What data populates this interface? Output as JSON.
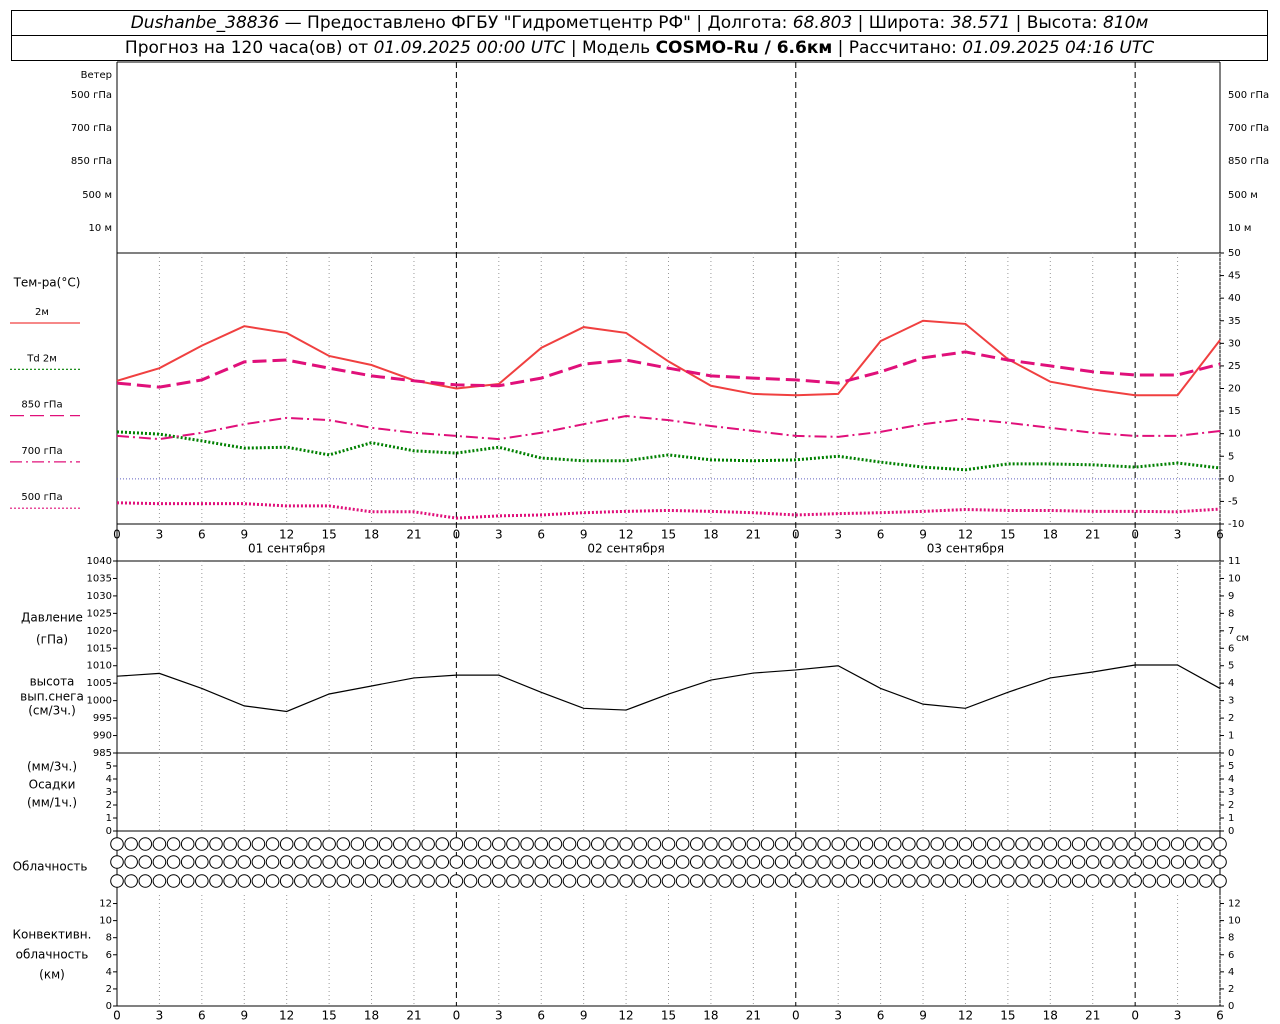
{
  "header": {
    "station": "Dushanbe_38836",
    "provider": "— Предоставлено ФГБУ \"Гидрометцентр РФ\"",
    "lon_label": "| Долгота:",
    "lon": "68.803",
    "lat_label": "| Широта:",
    "lat": "38.571",
    "alt_label": "| Высота:",
    "alt": "810м",
    "forecast_label": "Прогноз на 120 часа(ов) от",
    "forecast_time": "01.09.2025 00:00 UTC",
    "model_label": "| Модель",
    "model": "COSMO-Ru / 6.6км",
    "calc_label": "| Рассчитано:",
    "calc_time": "01.09.2025 04:16 UTC"
  },
  "chart_data": [
    {
      "type": "wind",
      "title": "Ветер",
      "levels": [
        "500 гПа",
        "700 гПа",
        "850 гПа",
        "500 м",
        "10 м"
      ]
    },
    {
      "type": "line",
      "title": "Тем-ра(°C)",
      "ytick_sides": [
        "right"
      ],
      "x": [
        0,
        3,
        6,
        9,
        12,
        15,
        18,
        21,
        24,
        27,
        30,
        33,
        36,
        39,
        42,
        45,
        48,
        51,
        54,
        57,
        60,
        63,
        66,
        69,
        72,
        75,
        78
      ],
      "xlim": [
        0,
        78
      ],
      "xticks": [
        0,
        3,
        6,
        9,
        12,
        15,
        18,
        21,
        {
          "value": 24,
          "label": "0"
        },
        {
          "value": 27,
          "label": "3"
        },
        {
          "value": 30,
          "label": "6"
        },
        {
          "value": 33,
          "label": "9"
        },
        {
          "value": 36,
          "label": "12"
        },
        {
          "value": 39,
          "label": "15"
        },
        {
          "value": 42,
          "label": "18"
        },
        {
          "value": 45,
          "label": "21"
        },
        {
          "value": 48,
          "label": "0"
        },
        {
          "value": 51,
          "label": "3"
        },
        {
          "value": 54,
          "label": "6"
        },
        {
          "value": 57,
          "label": "9"
        },
        {
          "value": 60,
          "label": "12"
        },
        {
          "value": 63,
          "label": "15"
        },
        {
          "value": 66,
          "label": "18"
        },
        {
          "value": 69,
          "label": "21"
        },
        {
          "value": 72,
          "label": "0"
        },
        {
          "value": 75,
          "label": "3"
        },
        {
          "value": 78,
          "label": "6"
        }
      ],
      "date_labels": [
        {
          "value": 12,
          "label": "01 сентября"
        },
        {
          "value": 36,
          "label": "02 сентября"
        },
        {
          "value": 60,
          "label": "03 сентября"
        }
      ],
      "ylim": [
        -10,
        50
      ],
      "yticks": [
        -10,
        -5,
        0,
        5,
        10,
        15,
        20,
        25,
        30,
        35,
        40,
        45,
        50
      ],
      "series": [
        {
          "name": "2м",
          "color": "#f04040",
          "style": "solid",
          "values": [
            21.7,
            24.5,
            29.5,
            33.8,
            32.3,
            27.2,
            25.2,
            21.8,
            20.0,
            21.0,
            29.0,
            33.6,
            32.3,
            26.0,
            20.6,
            18.8,
            18.5,
            18.8,
            30.5,
            35.0,
            34.3,
            26.5,
            21.5,
            19.8,
            18.5,
            18.5,
            30.7
          ]
        },
        {
          "name": "Td 2м",
          "color": "#008000",
          "style": "dotted",
          "values": [
            10.4,
            9.9,
            8.4,
            6.8,
            7.0,
            5.3,
            8.0,
            6.2,
            5.7,
            7.0,
            4.6,
            4.0,
            4.0,
            5.3,
            4.2,
            4.0,
            4.2,
            5.0,
            3.7,
            2.6,
            2.0,
            3.3,
            3.3,
            3.1,
            2.6,
            3.5,
            2.4
          ]
        },
        {
          "name": "850 гПа",
          "color": "#e0107a",
          "style": "dashed",
          "values": [
            21.2,
            20.3,
            21.9,
            25.9,
            26.3,
            24.5,
            22.8,
            21.7,
            20.8,
            20.6,
            22.3,
            25.4,
            26.3,
            24.5,
            22.8,
            22.3,
            21.9,
            21.2,
            23.7,
            26.8,
            28.1,
            26.3,
            25.0,
            23.7,
            23.0,
            23.0,
            25.4
          ]
        },
        {
          "name": "700 гПа",
          "color": "#e0107a",
          "style": "dashdot",
          "values": [
            9.5,
            8.8,
            10.2,
            12.1,
            13.5,
            13.0,
            11.3,
            10.2,
            9.5,
            8.8,
            10.2,
            12.1,
            13.9,
            13.0,
            11.7,
            10.6,
            9.5,
            9.3,
            10.4,
            12.1,
            13.3,
            12.4,
            11.3,
            10.2,
            9.5,
            9.5,
            10.6
          ]
        },
        {
          "name": "500 гПа",
          "color": "#e0107a",
          "style": "dotted",
          "values": [
            -5.3,
            -5.5,
            -5.5,
            -5.5,
            -6,
            -6,
            -7.3,
            -7.3,
            -8.7,
            -8.2,
            -8,
            -7.5,
            -7.2,
            -7,
            -7.2,
            -7.5,
            -8,
            -7.7,
            -7.5,
            -7.2,
            -6.8,
            -7,
            -7,
            -7.2,
            -7.2,
            -7.3,
            -6.7
          ]
        }
      ]
    },
    {
      "type": "line",
      "labels": [
        "Давление",
        "(гПа)",
        "высота",
        "вып.снега",
        "(см/3ч.)"
      ],
      "y2_unit": "см",
      "ytick_sides": [
        "left"
      ],
      "x": [
        0,
        3,
        6,
        9,
        12,
        15,
        18,
        21,
        24,
        27,
        30,
        33,
        36,
        39,
        42,
        45,
        48,
        51,
        54,
        57,
        60,
        63,
        66,
        69,
        72,
        75,
        78
      ],
      "xlim": [
        0,
        78
      ],
      "ylim": [
        985,
        1040
      ],
      "yticks": [
        985,
        990,
        995,
        1000,
        1005,
        1010,
        1015,
        1020,
        1025,
        1030,
        1035,
        1040
      ],
      "y2lim": [
        0,
        11
      ],
      "y2ticks": [
        0,
        1,
        2,
        3,
        4,
        5,
        6,
        7,
        8,
        9,
        10,
        11
      ],
      "series": [
        {
          "color": "#000000",
          "style": "solid",
          "values": [
            1007.0,
            1007.8,
            1003.5,
            998.5,
            996.9,
            1001.9,
            1004.2,
            1006.5,
            1007.3,
            1007.3,
            1002.4,
            997.8,
            997.3,
            1001.9,
            1005.9,
            1007.9,
            1008.8,
            1010.0,
            1003.5,
            999.0,
            997.8,
            1002.4,
            1006.5,
            1008.2,
            1010.2,
            1010.2,
            1003.5
          ]
        }
      ]
    },
    {
      "type": "bar",
      "labels": [
        "(мм/3ч.)",
        "Осадки",
        "(мм/1ч.)"
      ],
      "ytick_sides": [
        "left",
        "right"
      ],
      "ylim": [
        0,
        6
      ],
      "yticks": [
        0,
        1,
        2,
        3,
        4,
        5
      ]
    },
    {
      "type": "cloud",
      "title": "Облачность",
      "x": [
        0,
        1,
        2,
        3,
        4,
        5,
        6,
        7,
        8,
        9,
        10,
        11,
        12,
        13,
        14,
        15,
        16,
        17,
        18,
        19,
        20,
        21,
        22,
        23,
        24,
        25,
        26,
        27,
        28,
        29,
        30,
        31,
        32,
        33,
        34,
        35,
        36,
        37,
        38,
        39,
        40,
        41,
        42,
        43,
        44,
        45,
        46,
        47,
        48,
        49,
        50,
        51,
        52,
        53,
        54,
        55,
        56,
        57,
        58,
        59,
        60,
        61,
        62,
        63,
        64,
        65,
        66,
        67,
        68,
        69,
        70,
        71,
        72,
        73,
        74,
        75,
        76,
        77,
        78
      ],
      "xlim": [
        0,
        78
      ],
      "rows": [
        [
          0,
          0,
          0,
          0,
          0,
          0,
          0,
          0,
          0,
          0,
          0,
          0,
          0,
          0,
          0,
          0,
          0,
          0,
          0,
          0,
          0,
          0,
          0,
          0,
          0,
          0,
          0,
          0,
          0,
          0,
          0,
          0,
          0,
          0,
          0,
          0,
          0,
          0,
          0,
          0,
          0,
          0,
          0,
          0,
          0,
          0,
          0,
          0,
          0,
          0,
          0,
          0,
          0,
          0,
          0,
          0,
          0,
          0,
          0,
          0,
          0,
          0,
          0,
          0,
          0,
          0,
          0,
          0,
          0,
          0,
          0,
          0,
          0,
          0,
          0,
          0,
          0,
          0,
          0
        ],
        [
          0,
          0,
          0,
          0,
          0,
          0,
          0,
          0,
          0,
          0,
          0,
          0,
          0,
          0,
          0,
          0,
          0,
          0,
          0,
          0,
          0,
          0,
          0,
          0,
          0,
          0,
          0,
          0,
          0,
          0,
          0,
          0,
          0,
          0,
          0,
          0,
          0,
          0,
          0,
          0,
          0,
          0,
          0,
          0,
          0,
          0,
          0,
          0,
          0,
          0,
          0,
          0,
          0,
          0,
          0,
          0,
          0,
          0,
          0,
          0,
          0,
          0,
          0,
          0,
          0,
          0,
          0,
          0,
          0,
          0,
          0,
          0,
          0,
          0,
          0,
          0,
          0,
          0,
          0
        ],
        [
          0,
          0,
          0,
          0,
          0,
          0,
          0,
          0,
          0,
          0,
          0,
          0,
          0,
          0,
          0,
          0,
          0,
          0,
          0,
          0,
          0,
          0,
          0,
          0,
          0,
          0,
          0,
          0,
          0,
          0,
          0,
          0,
          0,
          0,
          0,
          0,
          0,
          0,
          0,
          0,
          0,
          0,
          0,
          0,
          0,
          0,
          0,
          0,
          0,
          0,
          0,
          0,
          0,
          0,
          0,
          0,
          0,
          0,
          0,
          0,
          0,
          0,
          0,
          0,
          0,
          0,
          0,
          0,
          0,
          0,
          0,
          0,
          0,
          0,
          0,
          0,
          0,
          0,
          0
        ]
      ]
    },
    {
      "type": "bar",
      "labels": [
        "Конвективн.",
        "облачность",
        "(км)"
      ],
      "ytick_sides": [
        "left",
        "right"
      ],
      "ylim": [
        0,
        13
      ],
      "yticks": [
        0,
        2,
        4,
        6,
        8,
        10,
        12
      ],
      "xlim": [
        0,
        78
      ],
      "xticks": [
        0,
        3,
        6,
        9,
        12,
        15,
        18,
        21,
        {
          "value": 24,
          "label": "0"
        },
        {
          "value": 27,
          "label": "3"
        },
        {
          "value": 30,
          "label": "6"
        },
        {
          "value": 33,
          "label": "9"
        },
        {
          "value": 36,
          "label": "12"
        },
        {
          "value": 39,
          "label": "15"
        },
        {
          "value": 42,
          "label": "18"
        },
        {
          "value": 45,
          "label": "21"
        },
        {
          "value": 48,
          "label": "0"
        },
        {
          "value": 51,
          "label": "3"
        },
        {
          "value": 54,
          "label": "6"
        },
        {
          "value": 57,
          "label": "9"
        },
        {
          "value": 60,
          "label": "12"
        },
        {
          "value": 63,
          "label": "15"
        },
        {
          "value": 66,
          "label": "18"
        },
        {
          "value": 69,
          "label": "21"
        },
        {
          "value": 72,
          "label": "0"
        },
        {
          "value": 75,
          "label": "3"
        },
        {
          "value": 78,
          "label": "6"
        }
      ]
    }
  ]
}
